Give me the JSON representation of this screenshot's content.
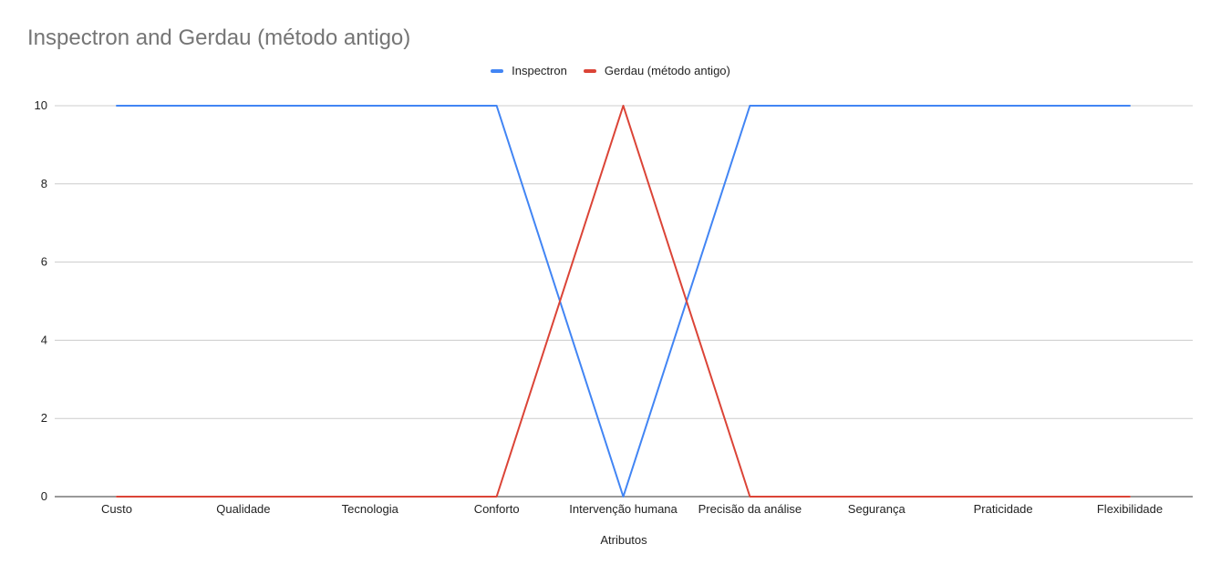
{
  "chart_data": {
    "type": "line",
    "title": "Inspectron and Gerdau (método antigo)",
    "xlabel": "Atributos",
    "ylabel": "",
    "categories": [
      "Custo",
      "Qualidade",
      "Tecnologia",
      "Conforto",
      "Intervenção humana",
      "Precisão da análise",
      "Segurança",
      "Praticidade",
      "Flexibilidade"
    ],
    "series": [
      {
        "name": "Inspectron",
        "color": "#4285f4",
        "values": [
          10,
          10,
          10,
          10,
          0,
          10,
          10,
          10,
          10
        ]
      },
      {
        "name": "Gerdau (método antigo)",
        "color": "#db4437",
        "values": [
          0,
          0,
          0,
          0,
          10,
          0,
          0,
          0,
          0
        ]
      }
    ],
    "ylim": [
      0,
      10
    ],
    "yticks": [
      0,
      2,
      4,
      6,
      8,
      10
    ],
    "grid": true,
    "legend_position": "top"
  }
}
